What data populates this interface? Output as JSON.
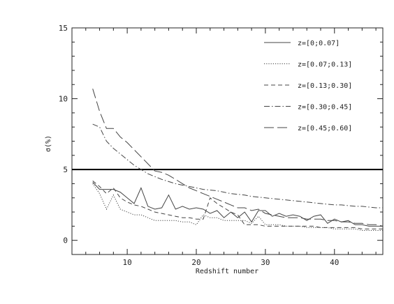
{
  "chart_data": {
    "type": "line",
    "title": "",
    "xlabel": "Redshift number",
    "ylabel": "σ(%)",
    "xlim": [
      2,
      47
    ],
    "ylim": [
      -1,
      15
    ],
    "x_ticks": [
      10,
      20,
      30,
      40
    ],
    "y_ticks": [
      0,
      5,
      10,
      15
    ],
    "x_tick_labels": [
      "10",
      "20",
      "30",
      "40"
    ],
    "y_tick_labels": [
      "0",
      "5",
      "10",
      "15"
    ],
    "grid": false,
    "legend_position": "top-right",
    "reference_line": {
      "y": 5
    },
    "series": [
      {
        "name": "z=[0;0.07]",
        "dash": "",
        "x": [
          5,
          6,
          7,
          8,
          9,
          10,
          11,
          12,
          13,
          14,
          15,
          16,
          17,
          18,
          19,
          20,
          21,
          22,
          23,
          24,
          25,
          26,
          27,
          28,
          29,
          30,
          31,
          32,
          33,
          34,
          35,
          36,
          37,
          38,
          39,
          40,
          41,
          42,
          43,
          44,
          45,
          46,
          47
        ],
        "y": [
          4.1,
          3.6,
          3.6,
          3.6,
          3.4,
          3.0,
          2.6,
          3.7,
          2.4,
          2.2,
          2.3,
          3.2,
          2.2,
          2.4,
          2.2,
          2.3,
          2.2,
          1.9,
          2.1,
          1.6,
          2.0,
          1.6,
          2.0,
          1.3,
          2.1,
          2.1,
          1.7,
          1.9,
          1.7,
          1.8,
          1.7,
          1.4,
          1.7,
          1.8,
          1.2,
          1.5,
          1.3,
          1.4,
          1.1,
          1.1,
          1.0,
          1.0,
          1.0
        ]
      },
      {
        "name": "z=[0.07;0.13]",
        "dash": "1.2 2",
        "x": [
          5,
          6,
          7,
          8,
          9,
          10,
          11,
          12,
          13,
          14,
          15,
          16,
          17,
          18,
          19,
          20,
          21,
          22,
          23,
          24,
          25,
          26,
          27,
          28,
          29,
          30,
          31,
          32,
          33,
          34,
          35,
          36,
          37,
          38,
          39,
          40,
          41,
          42,
          43,
          44,
          45,
          46,
          47
        ],
        "y": [
          4.0,
          3.3,
          2.2,
          3.2,
          2.2,
          2.0,
          1.8,
          1.8,
          1.6,
          1.4,
          1.4,
          1.4,
          1.4,
          1.3,
          1.3,
          1.1,
          1.8,
          1.6,
          1.6,
          1.4,
          1.4,
          1.4,
          1.4,
          1.2,
          1.7,
          1.1,
          1.1,
          1.1,
          1.0,
          1.0,
          1.0,
          0.9,
          0.9,
          0.9,
          0.9,
          0.8,
          0.8,
          0.8,
          0.8,
          0.7,
          0.7,
          0.7,
          0.7
        ]
      },
      {
        "name": "z=[0.13;0.30]",
        "dash": "6 4",
        "x": [
          5,
          6,
          7,
          8,
          9,
          10,
          11,
          12,
          13,
          14,
          15,
          16,
          17,
          18,
          19,
          20,
          21,
          22,
          23,
          24,
          25,
          26,
          27,
          28,
          29,
          30,
          31,
          32,
          33,
          34,
          35,
          36,
          37,
          38,
          39,
          40,
          41,
          42,
          43,
          44,
          45,
          46,
          47
        ],
        "y": [
          4.2,
          3.8,
          3.3,
          3.7,
          3.0,
          2.7,
          2.5,
          2.4,
          2.2,
          2.0,
          1.9,
          1.8,
          1.7,
          1.6,
          1.6,
          1.5,
          1.5,
          3.0,
          2.6,
          2.3,
          2.0,
          1.8,
          1.1,
          1.1,
          1.1,
          1.0,
          1.0,
          1.0,
          1.0,
          1.0,
          1.0,
          1.0,
          1.0,
          0.9,
          0.9,
          0.9,
          0.9,
          0.9,
          0.9,
          0.8,
          0.8,
          0.8,
          0.8
        ]
      },
      {
        "name": "z=[0.30;0.45]",
        "dash": "8 3 1.5 3",
        "x": [
          5,
          6,
          7,
          8,
          9,
          10,
          11,
          12,
          13,
          14,
          15,
          16,
          17,
          18,
          19,
          20,
          21,
          22,
          23,
          24,
          25,
          26,
          27,
          28,
          29,
          30,
          31,
          32,
          33,
          34,
          35,
          36,
          37,
          38,
          39,
          40,
          41,
          42,
          43,
          44,
          45,
          46,
          47
        ],
        "y": [
          8.2,
          8.0,
          7.0,
          6.5,
          6.1,
          5.7,
          5.3,
          5.0,
          4.7,
          4.5,
          4.3,
          4.15,
          4.0,
          3.9,
          3.8,
          3.7,
          3.6,
          3.55,
          3.5,
          3.4,
          3.3,
          3.25,
          3.2,
          3.1,
          3.05,
          3.0,
          2.95,
          2.9,
          2.85,
          2.8,
          2.75,
          2.7,
          2.65,
          2.6,
          2.55,
          2.5,
          2.5,
          2.45,
          2.4,
          2.4,
          2.35,
          2.3,
          2.3
        ]
      },
      {
        "name": "z=[0.45;0.60]",
        "dash": "14 5",
        "x": [
          5,
          6,
          7,
          8,
          9,
          10,
          11,
          12,
          13,
          14,
          15,
          16,
          17,
          18,
          19,
          20,
          21,
          22,
          23,
          24,
          25,
          26,
          27,
          28,
          29,
          30,
          31,
          32,
          33,
          34,
          35,
          36,
          37,
          38,
          39,
          40,
          41,
          42,
          43,
          44,
          45,
          46,
          47
        ],
        "y": [
          10.7,
          9.1,
          7.9,
          7.9,
          7.3,
          6.9,
          6.4,
          5.9,
          5.4,
          4.9,
          4.8,
          4.6,
          4.3,
          4.0,
          3.7,
          3.5,
          3.3,
          3.1,
          2.9,
          2.7,
          2.5,
          2.3,
          2.3,
          2.1,
          2.2,
          1.9,
          1.8,
          1.7,
          1.6,
          1.6,
          1.6,
          1.5,
          1.5,
          1.5,
          1.4,
          1.4,
          1.3,
          1.3,
          1.2,
          1.2,
          1.1,
          1.1,
          1.0
        ]
      }
    ]
  }
}
